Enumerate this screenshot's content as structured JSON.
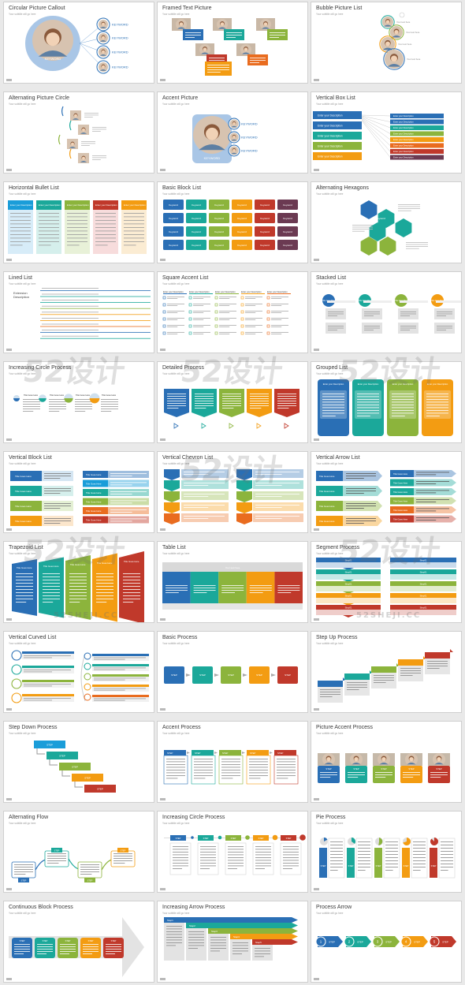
{
  "subtitle": "Your subtitle will go here",
  "slides": [
    {
      "title": "Circular Picture Callout",
      "type": "circular-callout"
    },
    {
      "title": "Framed Text Picture",
      "type": "framed-text"
    },
    {
      "title": "Bubble Picture List",
      "type": "bubble-list"
    },
    {
      "title": "Alternating Picture Circle",
      "type": "alt-picture-circle"
    },
    {
      "title": "Accent Picture",
      "type": "accent-picture"
    },
    {
      "title": "Vertical Box List",
      "type": "vertical-box"
    },
    {
      "title": "Horizontal Bullet List",
      "type": "horizontal-bullet"
    },
    {
      "title": "Basic Block List",
      "type": "basic-block"
    },
    {
      "title": "Alternating Hexagons",
      "type": "hexagons"
    },
    {
      "title": "Lined List",
      "type": "lined-list"
    },
    {
      "title": "Square Accent List",
      "type": "square-accent"
    },
    {
      "title": "Stacked List",
      "type": "stacked-list"
    },
    {
      "title": "Increasing Circle Process",
      "type": "inc-circle"
    },
    {
      "title": "Detailed Process",
      "type": "detailed-process"
    },
    {
      "title": "Grouped List",
      "type": "grouped-list"
    },
    {
      "title": "Vertical Block List",
      "type": "vertical-block"
    },
    {
      "title": "Vertical Chevron List",
      "type": "vertical-chevron"
    },
    {
      "title": "Vertical Arrow List",
      "type": "vertical-arrow"
    },
    {
      "title": "Trapezoid List",
      "type": "trapezoid"
    },
    {
      "title": "Table List",
      "type": "table-list"
    },
    {
      "title": "Segment Process",
      "type": "segment-process"
    },
    {
      "title": "Vertical Curved List",
      "type": "vertical-curved"
    },
    {
      "title": "Basic Process",
      "type": "basic-process"
    },
    {
      "title": "Step Up Process",
      "type": "step-up"
    },
    {
      "title": "Step Down Process",
      "type": "step-down"
    },
    {
      "title": "Accent Process",
      "type": "accent-process"
    },
    {
      "title": "Picture Accent Process",
      "type": "picture-accent-process"
    },
    {
      "title": "Alternating Flow",
      "type": "alt-flow"
    },
    {
      "title": "Increasing Circle Process",
      "type": "inc-circle-process"
    },
    {
      "title": "Pie Process",
      "type": "pie-process"
    },
    {
      "title": "Continuous Block Process",
      "type": "continuous-block"
    },
    {
      "title": "Increasing Arrow Process",
      "type": "increasing-arrow"
    },
    {
      "title": "Process Arrow",
      "type": "process-arrow"
    }
  ],
  "labels": {
    "keyword": "KEYWORD",
    "keyword_cap": "Keyword",
    "enter_desc": "Enter your Description",
    "enter_desc_short": "Enter your Descr...",
    "title_here": "Title Goes Here",
    "step": "STEP",
    "step_cap": "Step",
    "extension": "Extension Description",
    "text_here": "Your text here"
  },
  "watermark": {
    "text": "52设计",
    "sub": "52SHEJI.CC"
  },
  "palette": [
    "#2a6fb5",
    "#1ba89a",
    "#8cb43c",
    "#f39c12",
    "#e96c1f",
    "#c0392b",
    "#6b3a52",
    "#1a9dd9"
  ]
}
